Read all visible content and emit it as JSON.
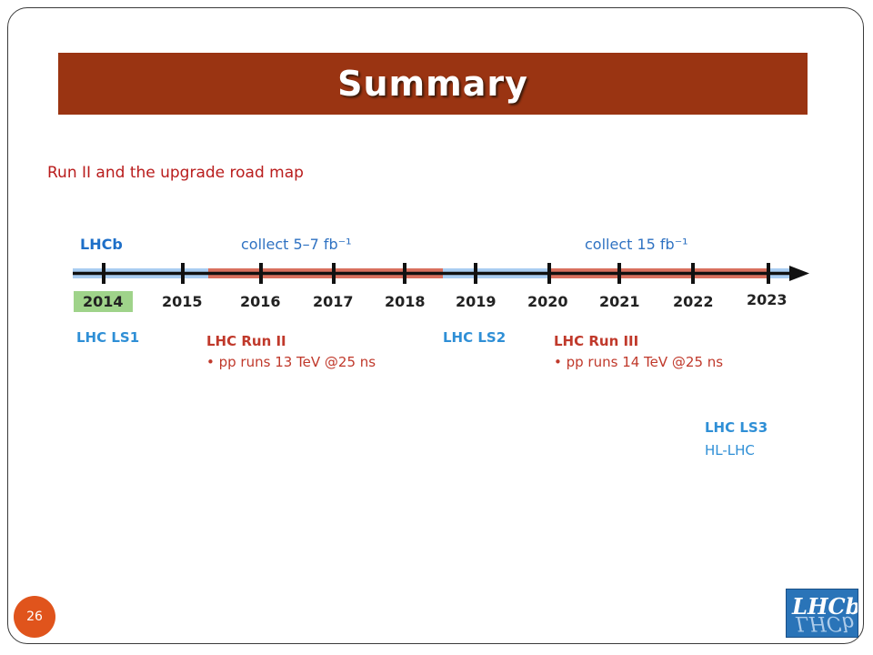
{
  "slide": {
    "title": "Summary",
    "subtitle": "Run II and the upgrade road map",
    "page_number": "26"
  },
  "timeline": {
    "brand": "LHCb",
    "collect_run2": "collect 5–7 fb⁻¹",
    "collect_run3": "collect 15 fb⁻¹",
    "years": [
      "2014",
      "2015",
      "2016",
      "2017",
      "2018",
      "2019",
      "2020",
      "2021",
      "2022",
      "2023"
    ],
    "periods": {
      "ls1": "LHC LS1",
      "run2": "LHC Run II",
      "run2_detail": "• pp runs 13 TeV @25 ns",
      "ls2": "LHC LS2",
      "run3": "LHC Run III",
      "run3_detail": "• pp runs 14 TeV @25 ns",
      "ls3": "LHC LS3",
      "ls3_detail": "HL-LHC"
    },
    "colors": {
      "baseline": "#a9cdf2",
      "run_band": "#d9705e",
      "axis": "#111111",
      "highlight_year": "#9fd38a"
    }
  },
  "logo": {
    "text": "LHCb"
  }
}
